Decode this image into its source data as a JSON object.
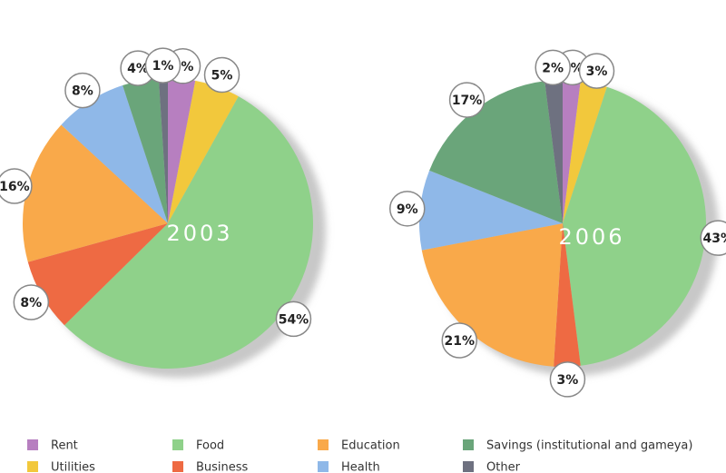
{
  "chart_data": {
    "type": "pie",
    "categories": [
      "Rent",
      "Utilities",
      "Food",
      "Business",
      "Education",
      "Health",
      "Savings (institutional and gameya)",
      "Other"
    ],
    "colors": [
      "#b77fc0",
      "#f2c83c",
      "#8fd18a",
      "#ee6a43",
      "#f9a94a",
      "#8fb8e8",
      "#6aa57a",
      "#6e7180"
    ],
    "series": [
      {
        "name": "2003",
        "values": [
          3,
          5,
          54,
          8,
          16,
          8,
          4,
          1
        ],
        "value_labels": [
          "3%",
          "5%",
          "54%",
          "8%",
          "16%",
          "8%",
          "4%",
          "1%"
        ]
      },
      {
        "name": "2006",
        "values": [
          2,
          3,
          43,
          3,
          21,
          9,
          17,
          2
        ],
        "value_labels": [
          "2%",
          "3%",
          "43%",
          "3%",
          "21%",
          "9%",
          "17%",
          "2%"
        ]
      }
    ]
  }
}
